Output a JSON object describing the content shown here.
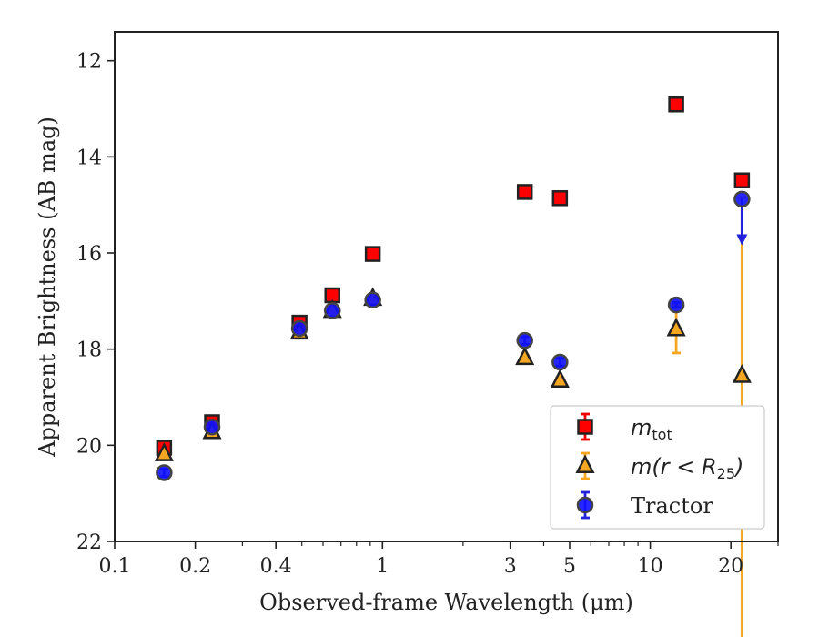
{
  "chart_data": {
    "type": "scatter",
    "xlabel": "Observed-frame Wavelength (μm)",
    "ylabel": "Apparent Brightness (AB mag)",
    "x_scale": "log",
    "y_inverted": true,
    "xlim": [
      0.1,
      30
    ],
    "ylim": [
      22,
      11.4
    ],
    "x_ticks": [
      0.1,
      0.2,
      0.4,
      1,
      3,
      5,
      10,
      20
    ],
    "x_tick_labels": [
      "0.1",
      "0.2",
      "0.4",
      "1",
      "3",
      "5",
      "10",
      "20"
    ],
    "y_ticks": [
      12,
      14,
      16,
      18,
      20,
      22
    ],
    "y_tick_labels": [
      "12",
      "14",
      "16",
      "18",
      "20",
      "22"
    ],
    "legend_position": "lower-right",
    "series": [
      {
        "name": "m_tot",
        "marker": "square",
        "color": "#ff0000",
        "edge_color": "#222222",
        "points": [
          {
            "x": 0.153,
            "y": 20.05,
            "err": 0.1
          },
          {
            "x": 0.231,
            "y": 19.52,
            "err": 0.08
          },
          {
            "x": 0.49,
            "y": 17.45,
            "err": 0.05
          },
          {
            "x": 0.65,
            "y": 16.88,
            "err": 0.05
          },
          {
            "x": 0.92,
            "y": 16.02,
            "err": 0.05
          },
          {
            "x": 3.4,
            "y": 14.73,
            "err": 0.05
          },
          {
            "x": 4.6,
            "y": 14.86,
            "err": 0.05
          },
          {
            "x": 12.5,
            "y": 12.91,
            "err": 0.05
          },
          {
            "x": 22.0,
            "y": 14.49,
            "err": 0.05
          }
        ]
      },
      {
        "name": "m(r < R_25)",
        "marker": "triangle",
        "color": "#f5a623",
        "edge_color": "#222222",
        "points": [
          {
            "x": 0.153,
            "y": 20.18,
            "err": 0.08
          },
          {
            "x": 0.231,
            "y": 19.72,
            "err": 0.08
          },
          {
            "x": 0.49,
            "y": 17.65,
            "err": 0.05
          },
          {
            "x": 0.65,
            "y": 17.2,
            "err": 0.05
          },
          {
            "x": 0.92,
            "y": 16.95,
            "err": 0.05
          },
          {
            "x": 3.4,
            "y": 18.18,
            "err": 0.05
          },
          {
            "x": 4.6,
            "y": 18.65,
            "err": 0.05
          },
          {
            "x": 12.5,
            "y": 17.58,
            "err": 0.5
          },
          {
            "x": 22.0,
            "y": 18.55,
            "err_low": 5.95,
            "err_high": 3.7
          }
        ]
      },
      {
        "name": "Tractor",
        "marker": "circle",
        "color": "#1010ff",
        "edge_color": "#444444",
        "points": [
          {
            "x": 0.153,
            "y": 20.57,
            "err": 0.08
          },
          {
            "x": 0.231,
            "y": 19.62,
            "err": 0.08
          },
          {
            "x": 0.49,
            "y": 17.57,
            "err": 0.05
          },
          {
            "x": 0.65,
            "y": 17.2,
            "err": 0.05
          },
          {
            "x": 0.92,
            "y": 16.98,
            "err": 0.05
          },
          {
            "x": 3.4,
            "y": 17.82,
            "err": 0.08
          },
          {
            "x": 4.6,
            "y": 18.27,
            "err": 0.08
          },
          {
            "x": 12.5,
            "y": 17.08,
            "err": 0.05
          },
          {
            "x": 22.0,
            "y": 14.88,
            "upper_limit_to": 15.8
          }
        ]
      }
    ]
  }
}
